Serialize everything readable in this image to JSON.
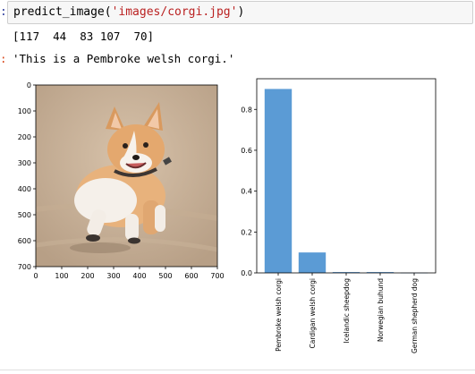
{
  "cell": {
    "in_prompt": ":",
    "code_fn": "predict_image(",
    "code_arg": "'images/corgi.jpg'",
    "code_close": ")",
    "stdout": "[117  44  83 107  70]",
    "out_prompt": ":",
    "out_value": "'This is a Pembroke welsh corgi.'"
  },
  "image_panel": {
    "x_ticks": [
      "0",
      "100",
      "200",
      "300",
      "400",
      "500",
      "600",
      "700"
    ],
    "y_ticks": [
      "0",
      "100",
      "200",
      "300",
      "400",
      "500",
      "600",
      "700"
    ],
    "x_range": [
      0,
      700
    ],
    "y_range": [
      0,
      700
    ]
  },
  "chart_data": {
    "type": "bar",
    "categories": [
      "Pembroke welsh corgi",
      "Cardigan welsh corgi",
      "Icelandic sheepdog",
      "Norwegian buhund",
      "German shepherd dog"
    ],
    "values": [
      0.9,
      0.1,
      0.004,
      0.004,
      0.001
    ],
    "ylim": [
      0,
      0.95
    ],
    "y_ticks": [
      0,
      0.2,
      0.4,
      0.6,
      0.8
    ],
    "y_tick_labels": [
      "0.0",
      "0.2",
      "0.4",
      "0.6",
      "0.8"
    ],
    "bar_color": "#5b9bd5",
    "grid": false
  }
}
